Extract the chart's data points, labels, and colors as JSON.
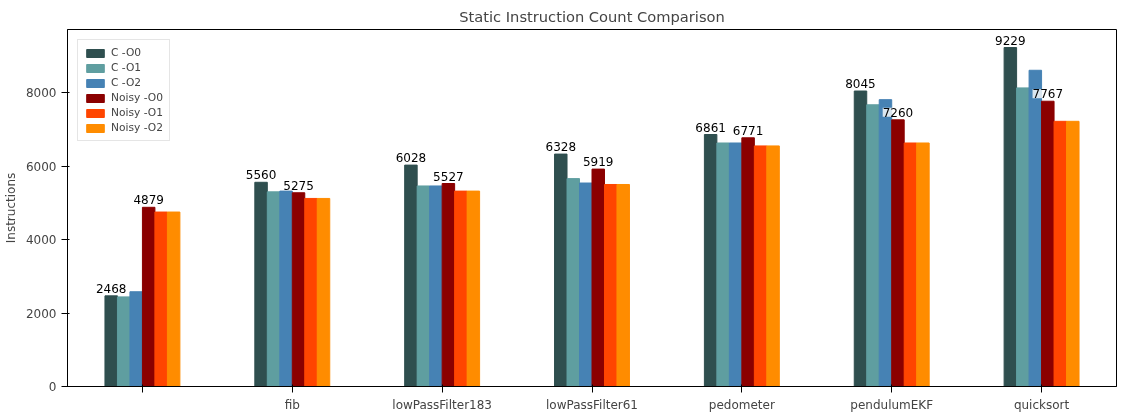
{
  "chart_data": {
    "type": "bar",
    "title": "Static Instruction Count Comparison",
    "ylabel": "Instructions",
    "categories": [
      null,
      "fib",
      "lowPassFilter183",
      "lowPassFilter61",
      "pedometer",
      "pendulumEKF",
      "quicksort"
    ],
    "series": [
      {
        "name": "C -O0",
        "color": "#2f4f4f",
        "values": [
          2468,
          5560,
          6028,
          6328,
          6861,
          8045,
          9229
        ],
        "value_labels": [
          "2468",
          "5560",
          "6028",
          "6328",
          "6861",
          "8045",
          "9229"
        ]
      },
      {
        "name": "C -O1",
        "color": "#5f9ea0",
        "values": [
          2440,
          5300,
          5460,
          5660,
          6630,
          7670,
          8130
        ]
      },
      {
        "name": "C -O2",
        "color": "#4682b4",
        "values": [
          2580,
          5320,
          5460,
          5540,
          6630,
          7810,
          8610
        ]
      },
      {
        "name": "Noisy -O0",
        "color": "#8b0000",
        "values": [
          4879,
          5275,
          5527,
          5919,
          6771,
          7260,
          7767
        ],
        "value_labels": [
          "4879",
          "5275",
          "5527",
          "5919",
          "6771",
          "7260",
          "7767"
        ]
      },
      {
        "name": "Noisy -O1",
        "color": "#ff4500",
        "values": [
          4750,
          5120,
          5320,
          5500,
          6550,
          6630,
          7220
        ]
      },
      {
        "name": "Noisy -O2",
        "color": "#ff8c00",
        "values": [
          4750,
          5120,
          5320,
          5500,
          6550,
          6630,
          7220
        ]
      }
    ],
    "ylim": [
      0,
      9720
    ],
    "yticks": [
      0,
      2000,
      4000,
      6000,
      8000
    ],
    "grid": false,
    "legend": "top left"
  }
}
